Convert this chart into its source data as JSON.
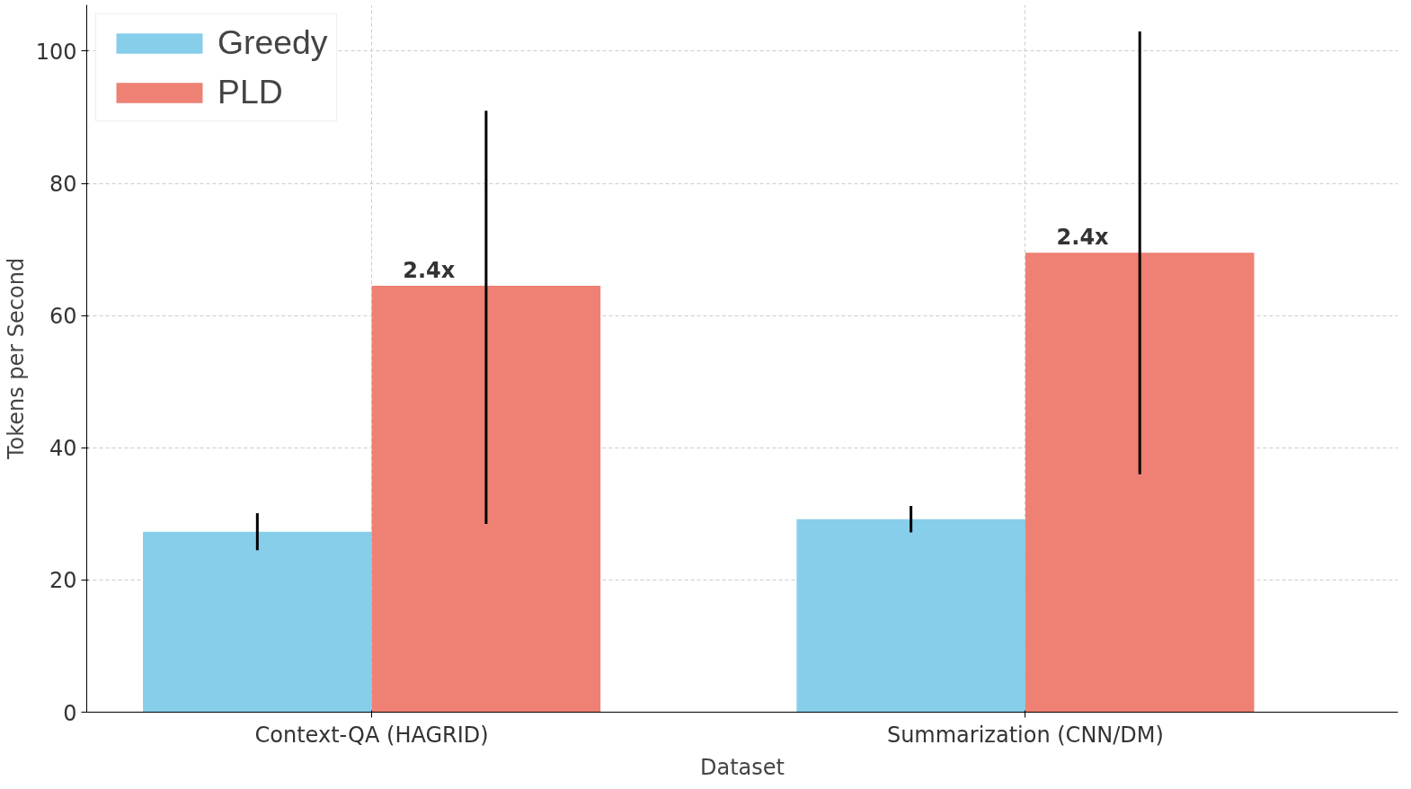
{
  "chart_data": {
    "type": "bar",
    "xlabel": "Dataset",
    "ylabel": "Tokens per Second",
    "categories": [
      "Context-QA (HAGRID)",
      "Summarization (CNN/DM)"
    ],
    "series": [
      {
        "name": "Greedy",
        "color": "#87ceeb",
        "values": [
          27.3,
          29.2
        ],
        "errors": [
          2.8,
          2.0
        ]
      },
      {
        "name": "PLD",
        "color": "#ee8173",
        "values": [
          64.5,
          69.5
        ],
        "errors": [
          [
            28.5,
            91
          ],
          [
            36,
            103
          ]
        ]
      }
    ],
    "annotations": [
      {
        "text": "2.4x",
        "x": "Context-QA (HAGRID)",
        "y": 64.5
      },
      {
        "text": "2.4x",
        "x": "Summarization (CNN/DM)",
        "y": 69.5
      }
    ],
    "ylim": [
      0,
      107
    ],
    "yticks": [
      0,
      20,
      40,
      60,
      80,
      100
    ],
    "grid": true,
    "legend": "top left"
  }
}
